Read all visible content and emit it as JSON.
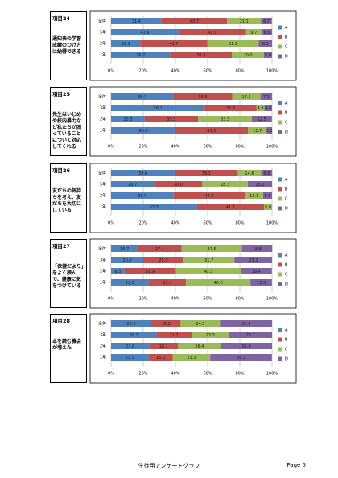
{
  "chart_data": [
    {
      "type": "stacked-bar",
      "item_label": "項目24",
      "question": "通知表の学習成績のつけ方は納得できる",
      "categories": [
        "全体",
        "3年",
        "2年",
        "1年"
      ],
      "series": [
        {
          "name": "A",
          "color": "#4f81bd",
          "values": [
            31.4,
            41.9,
            18.1,
            36.7
          ],
          "value_labels": [
            "31.4",
            "41.9",
            "18.1",
            "36.7"
          ]
        },
        {
          "name": "B",
          "color": "#c0504d",
          "values": [
            40.7,
            41.9,
            41.7,
            38.3
          ],
          "value_labels": [
            "40.7",
            "41.9",
            "41.7",
            "38.3"
          ]
        },
        {
          "name": "C",
          "color": "#9bbb59",
          "values": [
            21.1,
            9.7,
            31.9,
            20.0
          ],
          "value_labels": [
            "21.1",
            "9.7",
            "31.9",
            "20.0"
          ]
        },
        {
          "name": "D",
          "color": "#8064a2",
          "values": [
            6.7,
            6.5,
            8.3,
            5.0
          ],
          "value_labels": [
            "6.7",
            "6.5",
            "8.3",
            "5.0"
          ]
        }
      ],
      "xlim": [
        0,
        100
      ],
      "xticks": [
        {
          "value": 0,
          "label": "0%"
        },
        {
          "value": 20,
          "label": "20%"
        },
        {
          "value": 40,
          "label": "40%"
        },
        {
          "value": 60,
          "label": "60%"
        },
        {
          "value": 80,
          "label": "80%"
        },
        {
          "value": 100,
          "label": "100%"
        }
      ],
      "grid": true
    },
    {
      "type": "stacked-bar",
      "item_label": "項目25",
      "question": "先生はいじめや校内暴力など私たちが困っていることについて対応してくれる",
      "categories": [
        "全体",
        "3年",
        "2年",
        "1年"
      ],
      "series": [
        {
          "name": "A",
          "color": "#4f81bd",
          "values": [
            38.7,
            58.1,
            20.8,
            40.0
          ],
          "value_labels": [
            "38.7",
            "58.1",
            "20.8",
            "40.0"
          ]
        },
        {
          "name": "B",
          "color": "#c0504d",
          "values": [
            36.6,
            32.3,
            33.3,
            45.0
          ],
          "value_labels": [
            "36.6",
            "32.3",
            "33.3",
            "45.0"
          ]
        },
        {
          "name": "C",
          "color": "#9bbb59",
          "values": [
            17.5,
            4.8,
            33.3,
            11.7
          ],
          "value_labels": [
            "17.5",
            "4.8",
            "33.3",
            "11.7"
          ]
        },
        {
          "name": "D",
          "color": "#8064a2",
          "values": [
            7.2,
            4.8,
            12.5,
            3.3
          ],
          "value_labels": [
            "7.2",
            "4.8",
            "12.5",
            "3.3"
          ]
        }
      ],
      "xlim": [
        0,
        100
      ],
      "xticks": [
        {
          "value": 0,
          "label": "0%"
        },
        {
          "value": 20,
          "label": "20%"
        },
        {
          "value": 40,
          "label": "40%"
        },
        {
          "value": 60,
          "label": "60%"
        },
        {
          "value": 80,
          "label": "80%"
        },
        {
          "value": 100,
          "label": "100%"
        }
      ],
      "grid": true
    },
    {
      "type": "stacked-bar",
      "item_label": "項目26",
      "question": "友だちの気持ちを考え、友だちを大切にしている",
      "categories": [
        "全体",
        "3年",
        "2年",
        "1年"
      ],
      "series": [
        {
          "name": "A",
          "color": "#4f81bd",
          "values": [
            39.6,
            26.7,
            38.9,
            53.3
          ],
          "value_labels": [
            "39.6",
            "26.7",
            "38.9",
            "53.3"
          ]
        },
        {
          "name": "B",
          "color": "#c0504d",
          "values": [
            39.1,
            30.0,
            44.4,
            41.7
          ],
          "value_labels": [
            "39.1",
            "30.0",
            "44.4",
            "41.7"
          ]
        },
        {
          "name": "C",
          "color": "#9bbb59",
          "values": [
            14.6,
            28.3,
            11.1,
            5.0
          ],
          "value_labels": [
            "14.6",
            "28.3",
            "11.1",
            "5.0"
          ]
        },
        {
          "name": "D",
          "color": "#8064a2",
          "values": [
            6.8,
            15.0,
            5.6,
            0
          ],
          "value_labels": [
            "6.8",
            "15.0",
            "5.6",
            null
          ]
        }
      ],
      "xlim": [
        0,
        100
      ],
      "xticks": [
        {
          "value": 0,
          "label": "0%"
        },
        {
          "value": 20,
          "label": "20%"
        },
        {
          "value": 40,
          "label": "40%"
        },
        {
          "value": 60,
          "label": "60%"
        },
        {
          "value": 80,
          "label": "80%"
        },
        {
          "value": 100,
          "label": "100%"
        }
      ],
      "grid": true
    },
    {
      "type": "stacked-bar",
      "item_label": "項目27",
      "question": "「保健だより」をよく読んで、健康に気をつけている",
      "categories": [
        "全体",
        "3年",
        "2年",
        "1年"
      ],
      "series": [
        {
          "name": "A",
          "color": "#4f81bd",
          "values": [
            16.7,
            20.0,
            8.3,
            23.3
          ],
          "value_labels": [
            "16.7",
            "20.0",
            "8.3",
            "23.3"
          ]
        },
        {
          "name": "B",
          "color": "#c0504d",
          "values": [
            27.1,
            25.0,
            31.9,
            23.3
          ],
          "value_labels": [
            "27.1",
            "25.0",
            "31.9",
            "23.3"
          ]
        },
        {
          "name": "C",
          "color": "#9bbb59",
          "values": [
            37.5,
            31.7,
            40.3,
            40.0
          ],
          "value_labels": [
            "37.5",
            "31.7",
            "40.3",
            "40.0"
          ]
        },
        {
          "name": "D",
          "color": "#8064a2",
          "values": [
            18.8,
            23.3,
            19.4,
            13.3
          ],
          "value_labels": [
            "18.8",
            "23.3",
            "19.4",
            "13.3"
          ]
        }
      ],
      "xlim": [
        0,
        100
      ],
      "xticks": [
        {
          "value": 0,
          "label": "0%"
        },
        {
          "value": 20,
          "label": "20%"
        },
        {
          "value": 40,
          "label": "40%"
        },
        {
          "value": 60,
          "label": "60%"
        },
        {
          "value": 80,
          "label": "80%"
        },
        {
          "value": 100,
          "label": "100%"
        }
      ],
      "grid": true
    },
    {
      "type": "stacked-bar",
      "item_label": "項目28",
      "question": "本を読む機会が増えた",
      "categories": [
        "全体",
        "3年",
        "2年",
        "1年"
      ],
      "series": [
        {
          "name": "A",
          "color": "#4f81bd",
          "values": [
            25.0,
            28.3,
            23.6,
            23.3
          ],
          "value_labels": [
            "25.0",
            "28.3",
            "23.6",
            "23.3"
          ]
        },
        {
          "name": "B",
          "color": "#c0504d",
          "values": [
            18.2,
            21.7,
            18.1,
            15.0
          ],
          "value_labels": [
            "18.2",
            "21.7",
            "18.1",
            "15.0"
          ]
        },
        {
          "name": "C",
          "color": "#9bbb59",
          "values": [
            24.5,
            23.3,
            26.4,
            23.3
          ],
          "value_labels": [
            "24.5",
            "23.3",
            "26.4",
            "23.3"
          ]
        },
        {
          "name": "D",
          "color": "#8064a2",
          "values": [
            32.3,
            26.7,
            31.9,
            38.3
          ],
          "value_labels": [
            "32.3",
            "26.7",
            "31.9",
            "38.3"
          ]
        }
      ],
      "xlim": [
        0,
        100
      ],
      "xticks": [
        {
          "value": 0,
          "label": "0%"
        },
        {
          "value": 20,
          "label": "20%"
        },
        {
          "value": 40,
          "label": "40%"
        },
        {
          "value": 60,
          "label": "60%"
        },
        {
          "value": 80,
          "label": "80%"
        },
        {
          "value": 100,
          "label": "100%"
        }
      ],
      "grid": true
    }
  ],
  "footer": {
    "title": "生徒用アンケートグラフ",
    "page": "Page 5"
  }
}
